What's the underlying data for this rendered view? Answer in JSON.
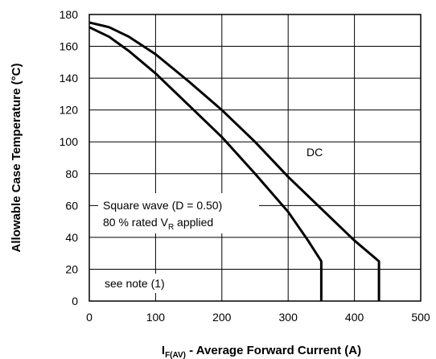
{
  "chart_data": {
    "type": "line",
    "ylabel": "Allowable Case Temperature (°C)",
    "xlabel_main": "I",
    "xlabel_sub": "F(AV)",
    "xlabel_rest": " - Average Forward Current (A)",
    "xlim": [
      0,
      500
    ],
    "ylim": [
      0,
      180
    ],
    "x_ticks": [
      0,
      100,
      200,
      300,
      400,
      500
    ],
    "y_ticks": [
      0,
      20,
      40,
      60,
      80,
      100,
      120,
      140,
      160,
      180
    ],
    "grid": true,
    "series": [
      {
        "name": "DC",
        "points": [
          [
            0,
            175
          ],
          [
            30,
            172
          ],
          [
            60,
            166
          ],
          [
            100,
            155
          ],
          [
            150,
            138
          ],
          [
            200,
            120
          ],
          [
            250,
            100
          ],
          [
            300,
            78
          ],
          [
            350,
            58
          ],
          [
            400,
            38
          ],
          [
            437,
            25
          ],
          [
            437,
            0
          ]
        ]
      },
      {
        "name": "Square wave (D = 0.50)",
        "points": [
          [
            0,
            172
          ],
          [
            30,
            166
          ],
          [
            60,
            157
          ],
          [
            100,
            143
          ],
          [
            150,
            123
          ],
          [
            200,
            103
          ],
          [
            250,
            80
          ],
          [
            300,
            56
          ],
          [
            330,
            38
          ],
          [
            350,
            25
          ],
          [
            350,
            0
          ]
        ]
      }
    ],
    "annotations": {
      "dc": "DC",
      "square_line1": "Square wave (D = 0.50)",
      "square_line2_a": "80 % rated V",
      "square_line2_sub": "R",
      "square_line2_b": " applied",
      "note": "see note (1)"
    }
  }
}
